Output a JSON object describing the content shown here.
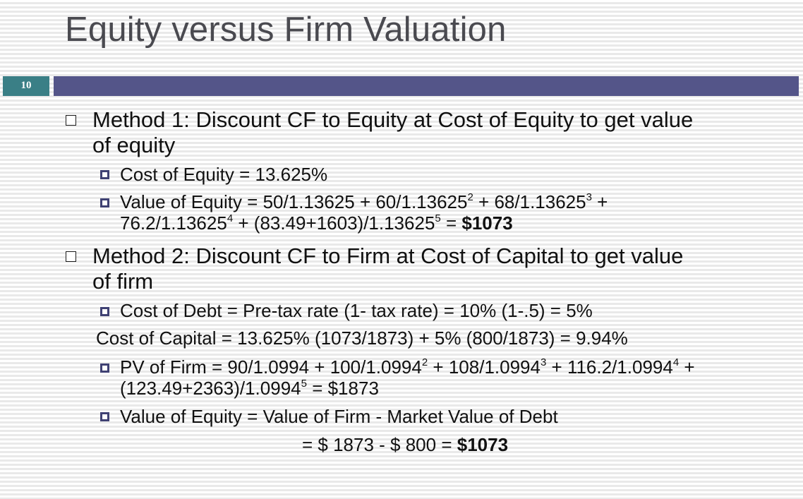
{
  "slide": {
    "title": "Equity versus Firm Valuation",
    "number": "10"
  },
  "method1": {
    "heading_line1": "Method 1: Discount CF to Equity at Cost of Equity to get value",
    "heading_line2": "of equity",
    "cost_of_equity": "Cost of Equity = 13.625%",
    "voe_a": "Value of Equity = 50/1.13625 + 60/1.13625",
    "voe_exp_a": "2",
    "voe_b": " + 68/1.13625",
    "voe_exp_b": "3",
    "voe_c": " +",
    "voe_d": "76.2/1.13625",
    "voe_exp_d": "4",
    "voe_e": " + (83.49+1603)/1.13625",
    "voe_exp_e": "5",
    "voe_f": "  = ",
    "voe_result": "$1073"
  },
  "method2": {
    "heading_line1": "Method 2: Discount CF to Firm at Cost of Capital to get value",
    "heading_line2": "of firm",
    "cost_of_debt": "Cost of Debt = Pre-tax rate (1- tax rate) = 10% (1-.5) = 5%",
    "cost_of_capital": "Cost of Capital = 13.625% (1073/1873) + 5% (800/1873) = 9.94%",
    "pv_a": "PV of Firm = 90/1.0994 + 100/1.0994",
    "pv_exp_a": "2",
    "pv_b": " + 108/1.0994",
    "pv_exp_b": "3",
    "pv_c": " + 116.2/1.0994",
    "pv_exp_c": "4",
    "pv_d": " +",
    "pv_e": "(123.49+2363)/1.0994",
    "pv_exp_e": "5",
    "pv_f": " = $1873",
    "voe_line1": "Value of Equity = Value of Firm - Market Value of Debt",
    "voe_line2_a": "= $ 1873 - $ 800 = ",
    "voe_line2_result": "$1073"
  }
}
